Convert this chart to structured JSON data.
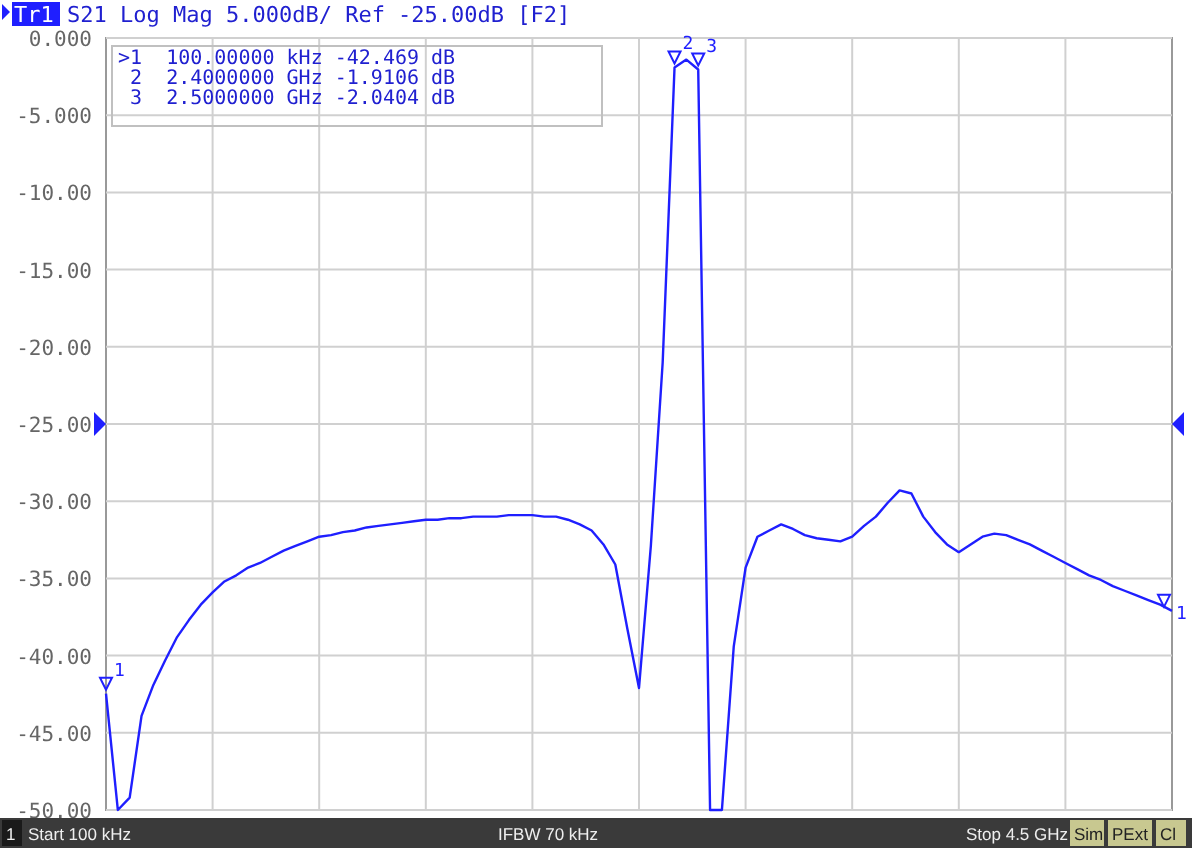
{
  "chart_data": {
    "type": "line",
    "title": "Tr1 S21 Log Mag 5.000dB/ Ref -25.00dB [F2]",
    "categories": [
      null,
      null,
      null,
      null,
      null,
      null,
      null,
      null,
      null,
      null,
      null,
      null,
      null,
      null,
      null,
      null,
      null,
      null,
      null,
      null,
      null,
      null,
      null,
      null,
      null,
      null,
      null,
      null,
      null,
      null,
      null,
      null,
      null,
      null,
      null,
      null,
      null,
      null,
      null,
      null,
      null,
      null,
      null,
      null,
      null,
      null,
      null,
      null,
      null,
      null,
      null,
      null,
      null,
      null,
      null,
      null,
      null,
      null,
      null,
      null,
      null,
      null,
      null,
      null,
      null,
      null,
      null,
      null,
      null,
      null,
      null,
      null,
      null,
      null,
      null,
      null,
      null,
      null,
      null,
      null,
      null,
      null,
      null,
      null,
      null,
      null,
      null,
      null,
      null,
      null,
      null
    ],
    "ylim": [
      -50,
      0
    ],
    "yticks": [
      {
        "value": 0,
        "label": "0.000"
      },
      {
        "value": -5,
        "label": "-5.000"
      },
      {
        "value": -10,
        "label": "-10.00"
      },
      {
        "value": -15,
        "label": "-15.00"
      },
      {
        "value": -20,
        "label": "-20.00"
      },
      {
        "value": -25,
        "label": "-25.00"
      },
      {
        "value": -30,
        "label": "-30.00"
      },
      {
        "value": -35,
        "label": "-35.00"
      },
      {
        "value": -40,
        "label": "-40.00"
      },
      {
        "value": -45,
        "label": "-45.00"
      },
      {
        "value": -50,
        "label": "-50.00"
      }
    ],
    "tick_labels": "y",
    "grid": true,
    "line_style": "solid",
    "series": [
      {
        "color": "#1f1fff",
        "values": [
          -42.469,
          -50,
          -49.2,
          -43.9,
          -41.9,
          -40.3,
          -38.8,
          -37.7,
          -36.7,
          -35.9,
          -35.2,
          -34.8,
          -34.3,
          -34.0,
          -33.6,
          -33.2,
          -32.9,
          -32.6,
          -32.3,
          -32.2,
          -32.0,
          -31.9,
          -31.7,
          -31.6,
          -31.5,
          -31.4,
          -31.3,
          -31.2,
          -31.2,
          -31.1,
          -31.1,
          -31.0,
          -31.0,
          -31.0,
          -30.9,
          -30.9,
          -30.9,
          -31.0,
          -31.0,
          -31.2,
          -31.5,
          -31.9,
          -32.8,
          -34.1,
          -38.2,
          -42.1,
          -32.9,
          -21,
          -1.9106,
          -1.4,
          -2.0404,
          -50,
          -50,
          -39.4,
          -34.3,
          -32.3,
          -31.9,
          -31.5,
          -31.8,
          -32.2,
          -32.4,
          -32.5,
          -32.6,
          -32.3,
          -31.6,
          -31.0,
          -30.1,
          -29.3,
          -29.5,
          -31.0,
          -32.0,
          -32.8,
          -33.3,
          -32.8,
          -32.3,
          -32.1,
          -32.2,
          -32.5,
          -32.8,
          -33.2,
          -33.6,
          -34.0,
          -34.4,
          -34.8,
          -35.1,
          -35.5,
          -35.8,
          -36.1,
          -36.4,
          -36.7,
          -37.1
        ]
      }
    ],
    "annotations": [
      ">1  100.00000 kHz -42.469 dB",
      " 2  2.4000000 GHz -1.9106 dB",
      " 3  2.5000000 GHz -2.0404 dB",
      "1",
      "Start 100 kHz",
      "IFBW 70 kHz",
      "Stop 4.5 GHz",
      "Sim",
      "PExt",
      "Cl",
      "1",
      "2",
      "3",
      "1"
    ]
  }
}
